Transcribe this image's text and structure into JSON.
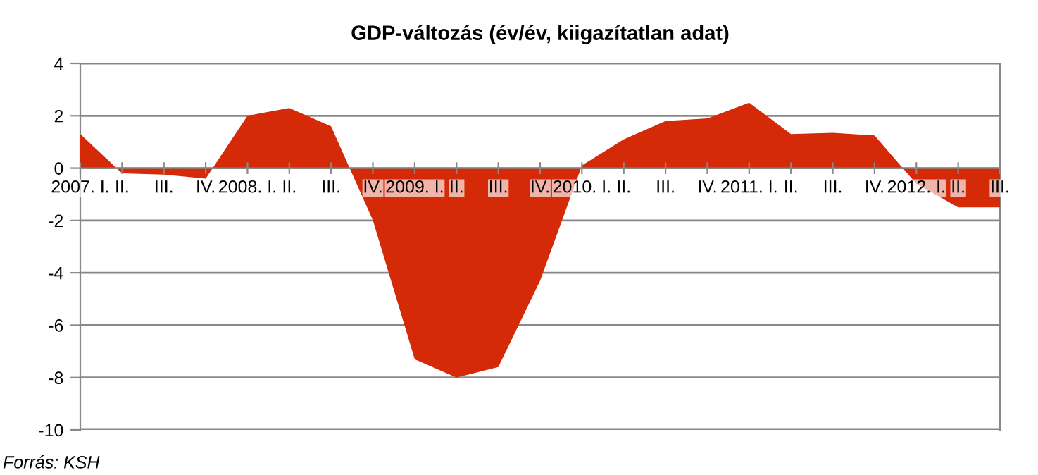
{
  "chart_data": {
    "type": "area",
    "title": "GDP-változás (év/év, kiigazítatlan adat)",
    "categories": [
      "2007. I.",
      "II.",
      "III.",
      "IV.",
      "2008. I.",
      "II.",
      "III.",
      "IV.",
      "2009. I.",
      "II.",
      "III.",
      "IV.",
      "2010. I.",
      "II.",
      "III.",
      "IV.",
      "2011. I.",
      "II.",
      "III.",
      "IV.",
      "2012. I.",
      "II.",
      "III."
    ],
    "series": [
      {
        "color": "#d42a08",
        "values": [
          1.3,
          -0.2,
          -0.25,
          -0.4,
          2.0,
          2.3,
          1.6,
          -2.0,
          -7.3,
          -8.0,
          -7.6,
          -4.3,
          0.1,
          1.1,
          1.8,
          1.9,
          2.5,
          1.3,
          1.35,
          1.25,
          -0.6,
          -1.5,
          -1.5
        ]
      }
    ],
    "ylim": [
      -10,
      4
    ],
    "yticks": [
      -10,
      -8,
      -6,
      -4,
      -2,
      0,
      2,
      4
    ],
    "grid": "y",
    "legend": false,
    "annotations": [
      "Forrás: KSH"
    ]
  }
}
